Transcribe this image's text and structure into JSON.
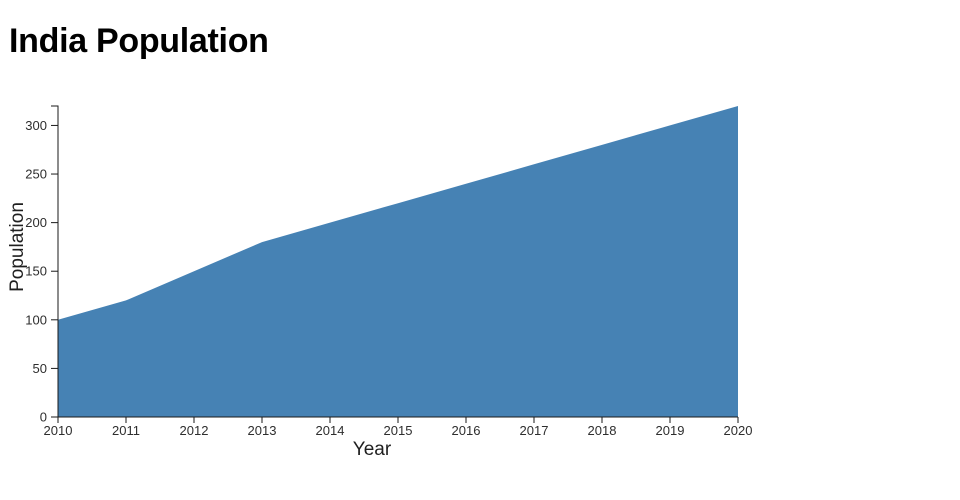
{
  "page": {
    "background": "#ffffff"
  },
  "chart_data": {
    "type": "area",
    "title": "India Population",
    "xlabel": "Year",
    "ylabel": "Population",
    "x": [
      2010,
      2011,
      2012,
      2013,
      2014,
      2015,
      2016,
      2017,
      2018,
      2019,
      2020
    ],
    "values": [
      100,
      120,
      150,
      180,
      200,
      220,
      240,
      260,
      280,
      300,
      320
    ],
    "xticks": [
      2010,
      2011,
      2012,
      2013,
      2014,
      2015,
      2016,
      2017,
      2018,
      2019,
      2020
    ],
    "yticks": [
      0,
      50,
      100,
      150,
      200,
      250,
      300
    ],
    "xlim": [
      2010,
      2020
    ],
    "ylim": [
      0,
      320
    ],
    "grid": false,
    "legend": false,
    "colors": {
      "area": "#4682b4",
      "axis": "#1a1a1a",
      "tick_label": "#2e2e2e",
      "axis_label": "#1f1f1f",
      "title": "#000000"
    }
  }
}
